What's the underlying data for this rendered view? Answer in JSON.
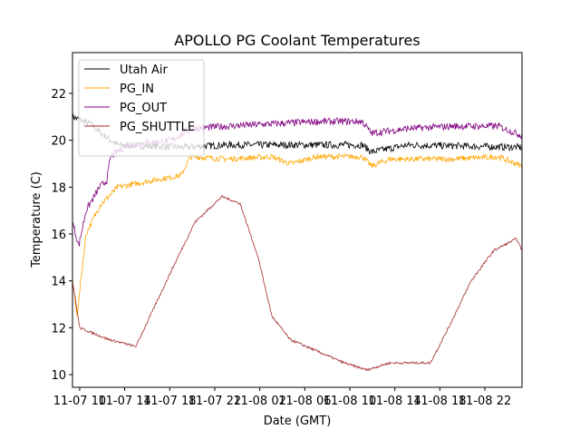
{
  "chart_data": {
    "type": "line",
    "title": "APOLLO PG Coolant Temperatures",
    "xlabel": "Date (GMT)",
    "ylabel": "Temperature (C)",
    "x_units": "hours since 11-07 00:00 GMT",
    "xlim": [
      9.36,
      49.3
    ],
    "ylim": [
      9.46,
      23.74
    ],
    "x_ticks": [
      10,
      14,
      18,
      22,
      26,
      30,
      34,
      38,
      42,
      46
    ],
    "x_tick_labels": [
      "11-07 10",
      "11-07 14",
      "11-07 18",
      "11-07 22",
      "11-08 02",
      "11-08 06",
      "11-08 10",
      "11-08 14",
      "11-08 18",
      "11-08 22"
    ],
    "y_ticks": [
      10,
      12,
      14,
      16,
      18,
      20,
      22
    ],
    "y_tick_labels": [
      "10",
      "12",
      "14",
      "16",
      "18",
      "20",
      "22"
    ],
    "grid": false,
    "legend_position": "top-left",
    "series": [
      {
        "name": "Utah Air",
        "color": "#000000",
        "noise": 0.15,
        "x": [
          9.36,
          10.97,
          12.17,
          13.38,
          19.02,
          23.04,
          27.07,
          35.12,
          35.92,
          39.15,
          49.29
        ],
        "y": [
          21.0,
          20.7,
          20.2,
          19.8,
          19.7,
          19.8,
          19.8,
          19.8,
          19.5,
          19.8,
          19.7
        ]
      },
      {
        "name": "PG_IN",
        "color": "#ffa500",
        "noise": 0.12,
        "x": [
          9.36,
          9.76,
          10.56,
          11.77,
          13.38,
          16.6,
          19.02,
          19.82,
          23.04,
          27.07,
          28.68,
          31.1,
          35.12,
          35.92,
          37.54,
          43.17,
          47.2,
          49.29
        ],
        "y": [
          14.0,
          12.5,
          16.0,
          17.2,
          18.0,
          18.3,
          18.5,
          19.3,
          19.2,
          19.3,
          19.0,
          19.3,
          19.3,
          18.9,
          19.2,
          19.2,
          19.3,
          18.9
        ]
      },
      {
        "name": "PG_OUT",
        "color": "#800080",
        "noise": 0.15,
        "x": [
          9.36,
          9.92,
          10.56,
          11.77,
          12.42,
          12.74,
          14.19,
          18.21,
          19.82,
          23.04,
          27.07,
          31.1,
          35.12,
          35.92,
          39.15,
          43.17,
          47.2,
          49.29
        ],
        "y": [
          16.5,
          15.5,
          17.0,
          18.0,
          18.3,
          19.3,
          19.8,
          20.0,
          20.5,
          20.6,
          20.7,
          20.8,
          20.8,
          20.3,
          20.5,
          20.6,
          20.6,
          20.2
        ]
      },
      {
        "name": "PG_SHUTTLE",
        "color": "#a52a2a",
        "noise": 0.05,
        "x": [
          9.36,
          10.0,
          12.58,
          14.99,
          18.21,
          20.23,
          22.64,
          24.25,
          25.86,
          27.07,
          28.68,
          31.1,
          33.5,
          35.52,
          37.54,
          41.16,
          42.77,
          44.78,
          46.8,
          48.81,
          49.29
        ],
        "y": [
          14.0,
          12.0,
          11.5,
          11.2,
          14.5,
          16.5,
          17.6,
          17.3,
          15.0,
          12.5,
          11.5,
          11.0,
          10.5,
          10.2,
          10.5,
          10.5,
          12.0,
          14.0,
          15.3,
          15.8,
          15.3
        ]
      }
    ]
  }
}
